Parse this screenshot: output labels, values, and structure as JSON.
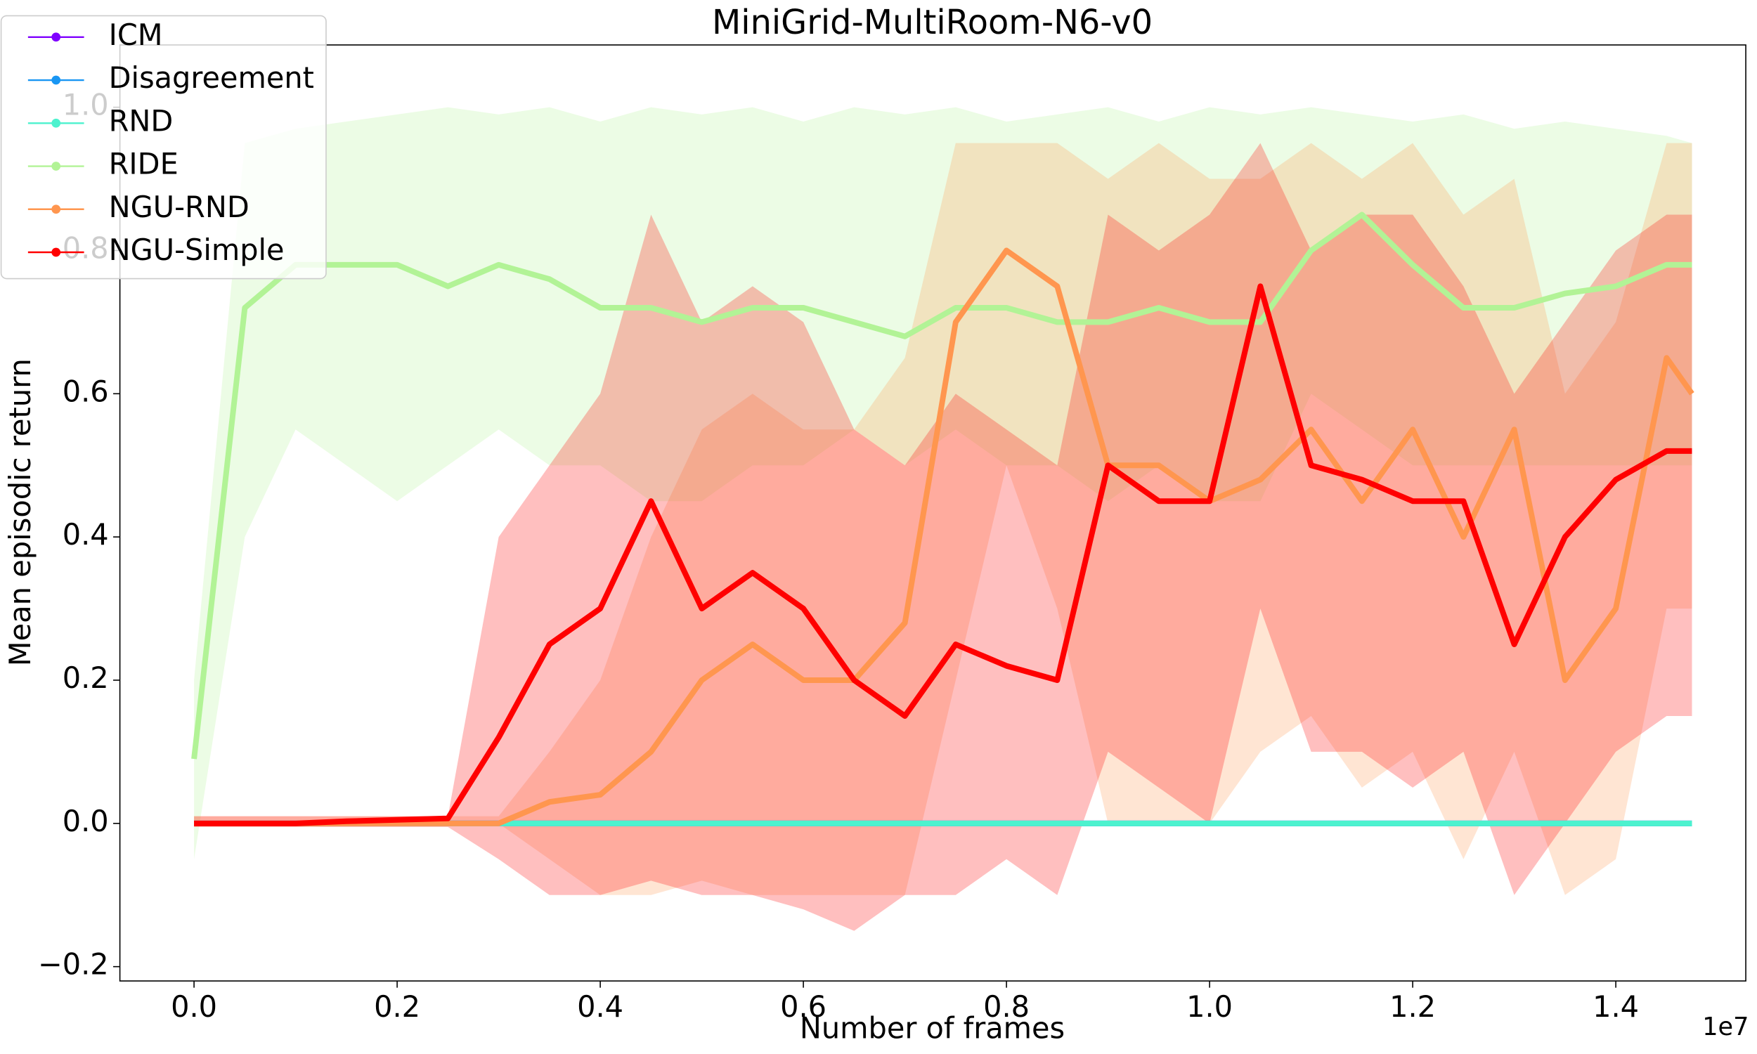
{
  "chart_data": {
    "type": "line",
    "title": "MiniGrid-MultiRoom-N6-v0",
    "x_label": "Number of frames",
    "y_label": "Mean episodic return",
    "x_offset_label": "1e7",
    "x": [
      0,
      0.05,
      0.1,
      0.15,
      0.2,
      0.25,
      0.3,
      0.35,
      0.4,
      0.45,
      0.5,
      0.55,
      0.6,
      0.65,
      0.7,
      0.75,
      0.8,
      0.85,
      0.9,
      0.95,
      1.0,
      1.05,
      1.1,
      1.15,
      1.2,
      1.25,
      1.3,
      1.35,
      1.4,
      1.45,
      1.475
    ],
    "xlim": [
      -0.073,
      1.528
    ],
    "ylim": [
      -0.22,
      1.087
    ],
    "xticks": [
      {
        "value": 0,
        "label": "0.0"
      },
      {
        "value": 0.2,
        "label": "0.2"
      },
      {
        "value": 0.4,
        "label": "0.4"
      },
      {
        "value": 0.6,
        "label": "0.6"
      },
      {
        "value": 0.8,
        "label": "0.8"
      },
      {
        "value": 1.0,
        "label": "1.0"
      },
      {
        "value": 1.2,
        "label": "1.2"
      },
      {
        "value": 1.4,
        "label": "1.4"
      }
    ],
    "yticks": [
      {
        "value": -0.2,
        "label": "−0.2"
      },
      {
        "value": 0,
        "label": "0.0"
      },
      {
        "value": 0.2,
        "label": "0.2"
      },
      {
        "value": 0.4,
        "label": "0.4"
      },
      {
        "value": 0.6,
        "label": "0.6"
      },
      {
        "value": 0.8,
        "label": "0.8"
      },
      {
        "value": 1.0,
        "label": "1.0"
      }
    ],
    "legend": "upper left",
    "series": [
      {
        "name": "ICM",
        "color": "#7f00ff",
        "values": [
          0,
          0,
          0,
          0,
          0,
          0,
          0,
          0,
          0,
          0,
          0,
          0,
          0,
          0,
          0,
          0,
          0,
          0,
          0,
          0,
          0,
          0,
          0,
          0,
          0,
          0,
          0,
          0,
          0,
          0,
          0
        ]
      },
      {
        "name": "Disagreement",
        "color": "#1996f3",
        "values": [
          0,
          0,
          0,
          0,
          0,
          0,
          0,
          0,
          0,
          0,
          0,
          0,
          0,
          0,
          0,
          0,
          0,
          0,
          0,
          0,
          0,
          0,
          0,
          0,
          0,
          0,
          0,
          0,
          0,
          0,
          0
        ]
      },
      {
        "name": "RND",
        "color": "#4cf2ce",
        "values": [
          0,
          0,
          0,
          0,
          0,
          0,
          0,
          0,
          0,
          0,
          0,
          0,
          0,
          0,
          0,
          0,
          0,
          0,
          0,
          0,
          0,
          0,
          0,
          0,
          0,
          0,
          0,
          0,
          0,
          0,
          0
        ]
      },
      {
        "name": "RIDE",
        "color": "#b2f396",
        "values": [
          0.09,
          0.72,
          0.78,
          0.78,
          0.78,
          0.75,
          0.78,
          0.76,
          0.72,
          0.72,
          0.7,
          0.72,
          0.72,
          0.7,
          0.68,
          0.72,
          0.72,
          0.7,
          0.7,
          0.72,
          0.7,
          0.7,
          0.8,
          0.85,
          0.78,
          0.72,
          0.72,
          0.74,
          0.75,
          0.78,
          0.78
        ],
        "lower": [
          -0.05,
          0.4,
          0.55,
          0.5,
          0.45,
          0.5,
          0.55,
          0.5,
          0.5,
          0.45,
          0.45,
          0.5,
          0.5,
          0.55,
          0.5,
          0.55,
          0.5,
          0.5,
          0.45,
          0.5,
          0.45,
          0.45,
          0.6,
          0.55,
          0.5,
          0.5,
          0.5,
          0.5,
          0.5,
          0.5,
          0.5
        ],
        "upper": [
          0.2,
          0.95,
          0.97,
          0.98,
          0.99,
          1.0,
          0.99,
          1.0,
          0.98,
          1.0,
          0.99,
          1.0,
          0.98,
          1.0,
          0.99,
          1.0,
          0.98,
          0.99,
          1.0,
          0.98,
          1.0,
          0.99,
          1.0,
          0.99,
          0.98,
          0.99,
          0.97,
          0.98,
          0.97,
          0.96,
          0.95
        ]
      },
      {
        "name": "NGU-RND",
        "color": "#ff964f",
        "values": [
          0,
          0,
          0,
          0,
          0,
          0,
          0,
          0.03,
          0.04,
          0.1,
          0.2,
          0.25,
          0.2,
          0.2,
          0.28,
          0.7,
          0.8,
          0.75,
          0.5,
          0.5,
          0.45,
          0.48,
          0.55,
          0.45,
          0.55,
          0.4,
          0.55,
          0.2,
          0.3,
          0.65,
          0.6
        ],
        "lower": [
          0,
          0,
          0,
          0,
          0,
          0,
          0,
          -0.05,
          -0.1,
          -0.1,
          -0.08,
          -0.1,
          -0.1,
          -0.1,
          -0.1,
          0.2,
          0.5,
          0.3,
          0,
          0,
          0,
          0.1,
          0.15,
          0.05,
          0.1,
          -0.05,
          0.1,
          -0.1,
          -0.05,
          0.3,
          0.3
        ],
        "upper": [
          0.01,
          0.01,
          0.01,
          0.01,
          0.01,
          0.01,
          0.01,
          0.1,
          0.2,
          0.4,
          0.55,
          0.6,
          0.55,
          0.55,
          0.65,
          0.95,
          0.95,
          0.95,
          0.9,
          0.95,
          0.9,
          0.9,
          0.95,
          0.9,
          0.95,
          0.85,
          0.9,
          0.6,
          0.7,
          0.95,
          0.95
        ]
      },
      {
        "name": "NGU-Simple",
        "color": "#ff0000",
        "values": [
          0,
          0,
          0,
          0.003,
          0.005,
          0.007,
          0.12,
          0.25,
          0.3,
          0.45,
          0.3,
          0.35,
          0.3,
          0.2,
          0.15,
          0.25,
          0.22,
          0.2,
          0.5,
          0.45,
          0.45,
          0.75,
          0.5,
          0.48,
          0.45,
          0.45,
          0.25,
          0.4,
          0.48,
          0.52,
          0.52
        ],
        "lower": [
          -0.005,
          -0.005,
          -0.005,
          -0.005,
          -0.005,
          -0.005,
          -0.05,
          -0.1,
          -0.1,
          -0.08,
          -0.1,
          -0.1,
          -0.12,
          -0.15,
          -0.1,
          -0.1,
          -0.05,
          -0.1,
          0.1,
          0.05,
          0,
          0.3,
          0.1,
          0.1,
          0.05,
          0.1,
          -0.1,
          0,
          0.1,
          0.15,
          0.15
        ],
        "upper": [
          0.01,
          0.01,
          0.01,
          0.01,
          0.01,
          0.01,
          0.4,
          0.5,
          0.6,
          0.85,
          0.7,
          0.75,
          0.7,
          0.55,
          0.5,
          0.6,
          0.55,
          0.5,
          0.85,
          0.8,
          0.85,
          0.95,
          0.8,
          0.85,
          0.85,
          0.75,
          0.6,
          0.7,
          0.8,
          0.85,
          0.85
        ]
      }
    ]
  }
}
